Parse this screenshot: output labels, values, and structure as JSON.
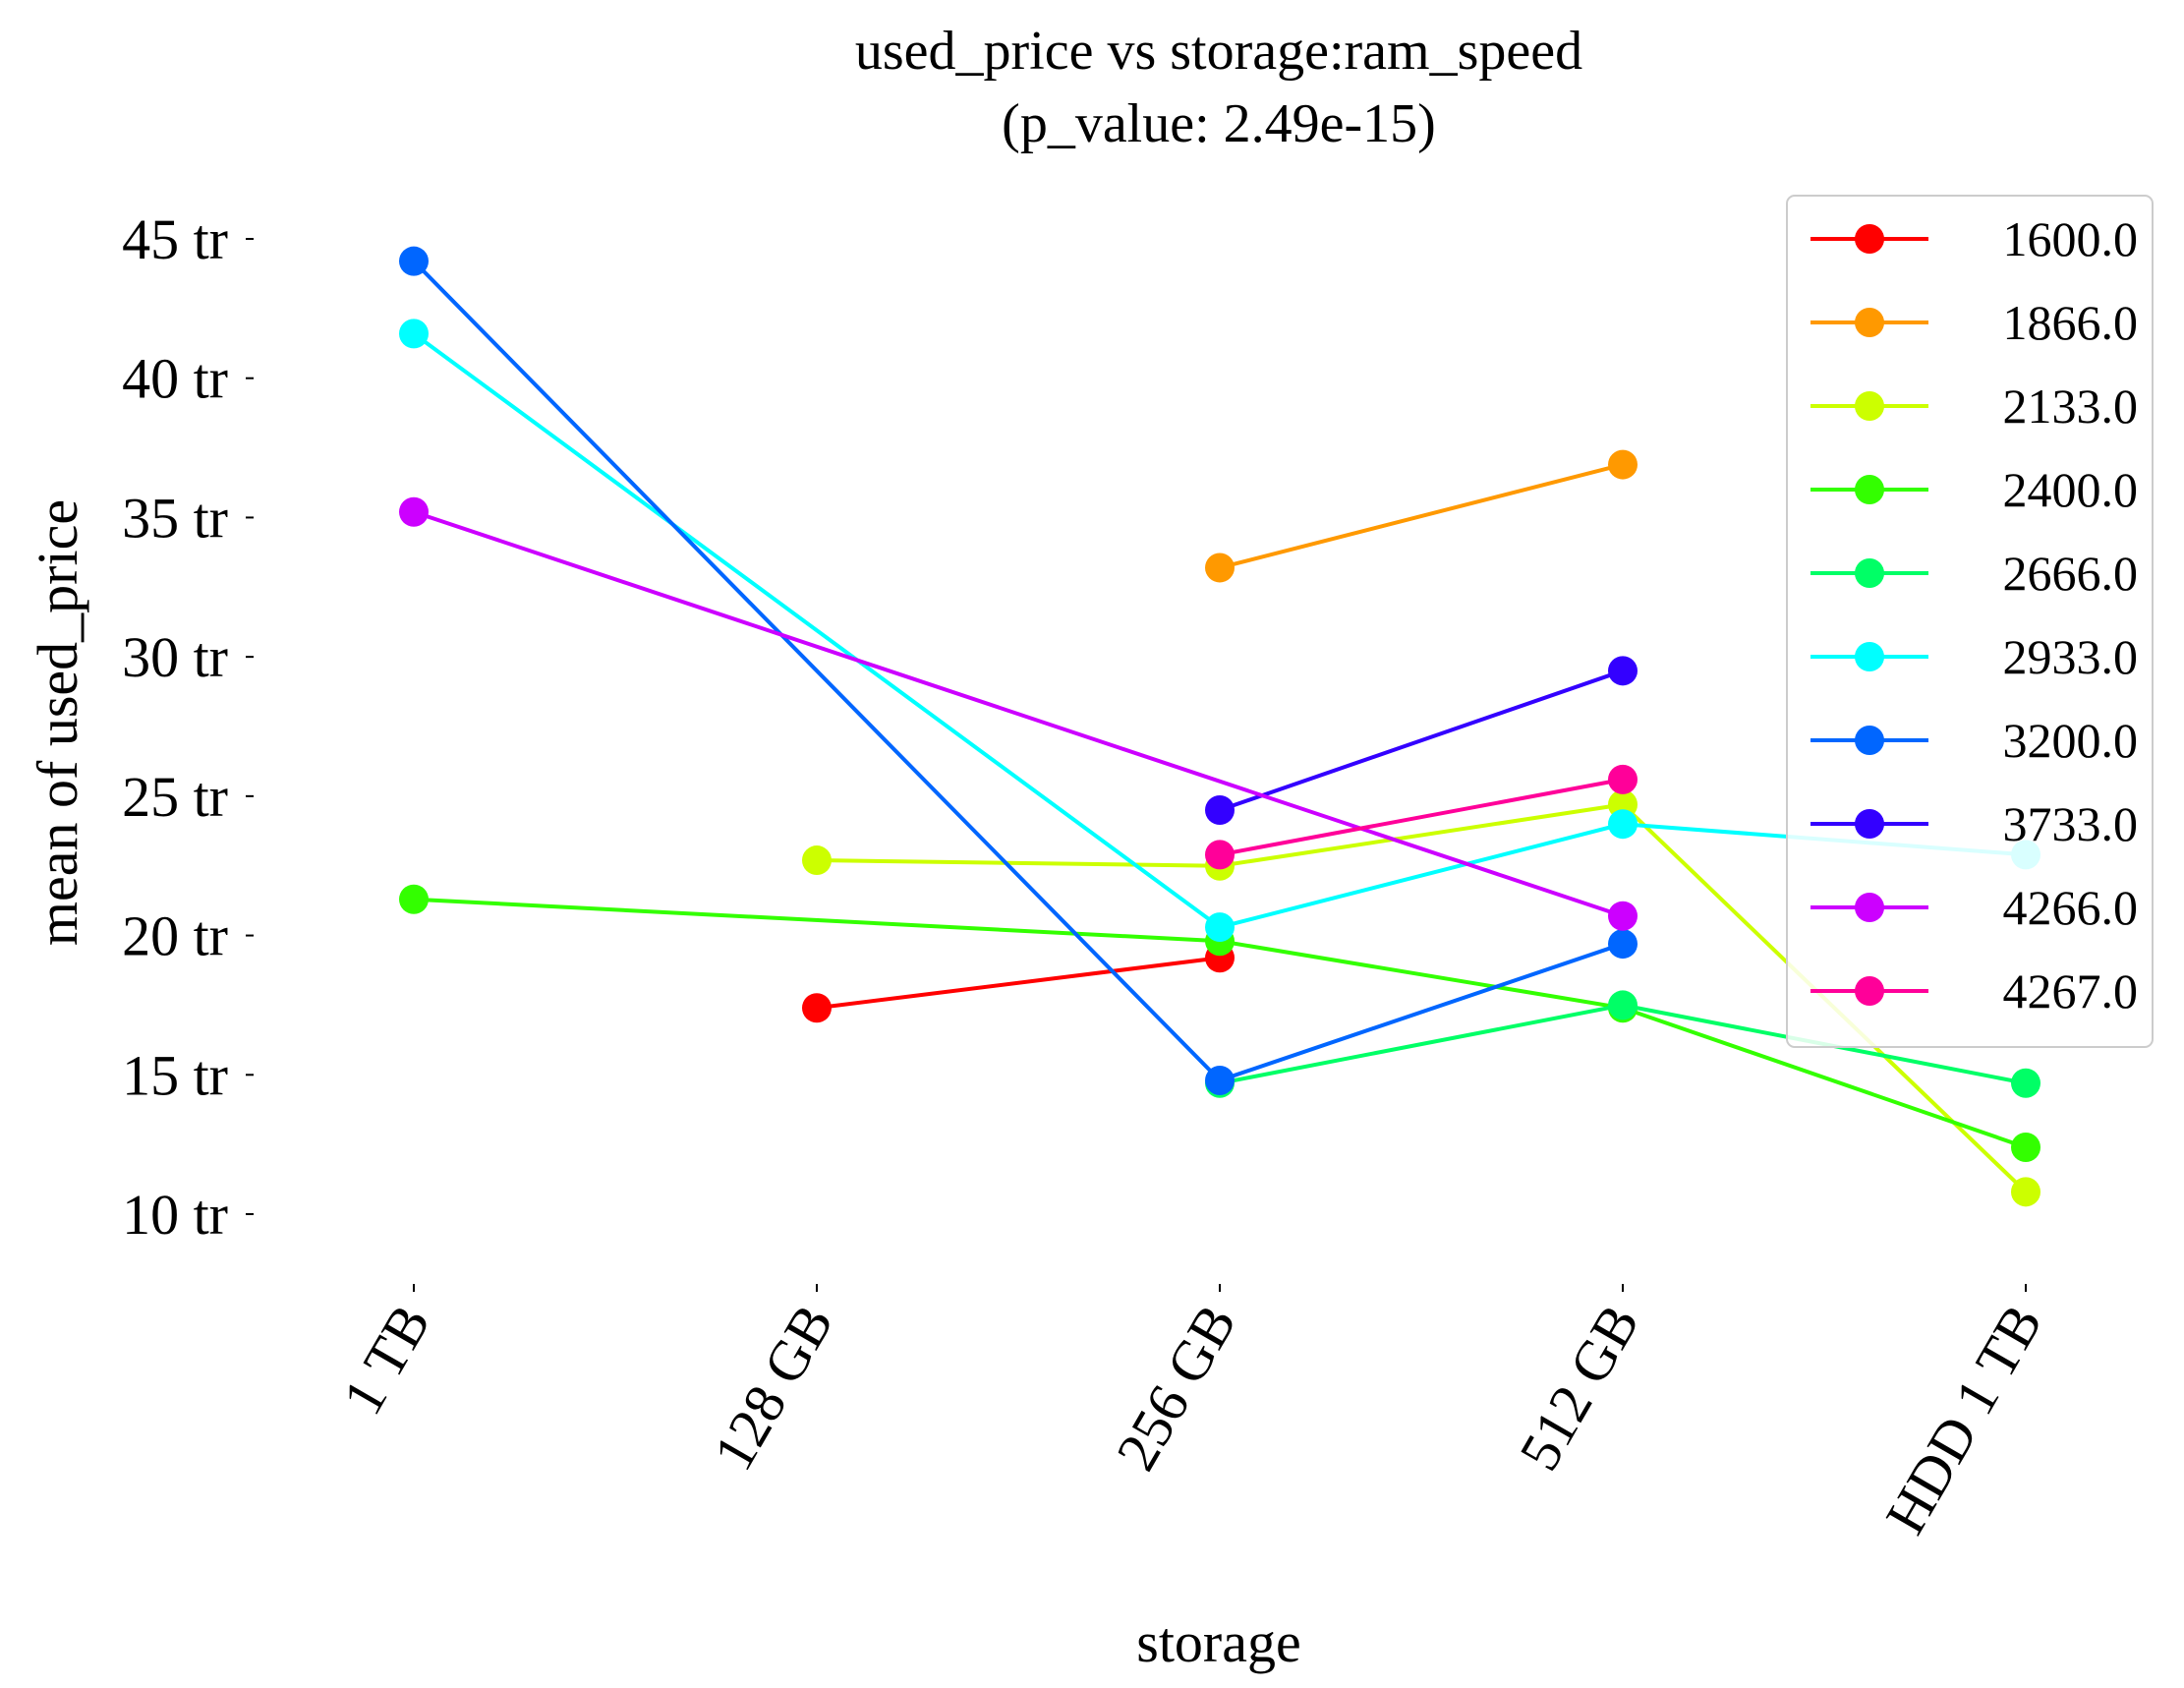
{
  "chart_data": {
    "type": "line",
    "title": "used_price vs storage:ram_speed",
    "subtitle": "(p_value: 2.49e-15)",
    "xlabel": "storage",
    "ylabel": "mean of used_price",
    "categories": [
      "1 TB",
      "128 GB",
      "256 GB",
      "512 GB",
      "HDD 1 TB"
    ],
    "y_ticks": [
      10,
      15,
      20,
      25,
      30,
      35,
      40,
      45
    ],
    "y_tick_suffix": " tr",
    "ylim": [
      7.5,
      47
    ],
    "grid": false,
    "legend_position": "top-right",
    "series": [
      {
        "name": "1600.0",
        "color": "#ff0000",
        "values": [
          null,
          17.4,
          19.2,
          null,
          null
        ]
      },
      {
        "name": "1866.0",
        "color": "#ff9900",
        "values": [
          null,
          null,
          33.2,
          36.9,
          null
        ]
      },
      {
        "name": "2133.0",
        "color": "#ccff00",
        "values": [
          null,
          22.7,
          22.5,
          24.7,
          10.8
        ]
      },
      {
        "name": "2400.0",
        "color": "#33ff00",
        "values": [
          21.3,
          null,
          19.8,
          17.4,
          12.4
        ]
      },
      {
        "name": "2666.0",
        "color": "#00ff66",
        "values": [
          null,
          null,
          14.7,
          17.5,
          14.7
        ]
      },
      {
        "name": "2933.0",
        "color": "#00ffff",
        "values": [
          41.6,
          null,
          20.3,
          24.0,
          22.9
        ]
      },
      {
        "name": "3200.0",
        "color": "#0066ff",
        "values": [
          44.2,
          null,
          14.8,
          19.7,
          null
        ]
      },
      {
        "name": "3733.0",
        "color": "#3300ff",
        "values": [
          null,
          null,
          24.5,
          29.5,
          null
        ]
      },
      {
        "name": "4266.0",
        "color": "#cc00ff",
        "values": [
          35.2,
          null,
          null,
          20.7,
          null
        ]
      },
      {
        "name": "4267.0",
        "color": "#ff0099",
        "values": [
          null,
          null,
          22.9,
          25.6,
          null
        ]
      }
    ]
  }
}
